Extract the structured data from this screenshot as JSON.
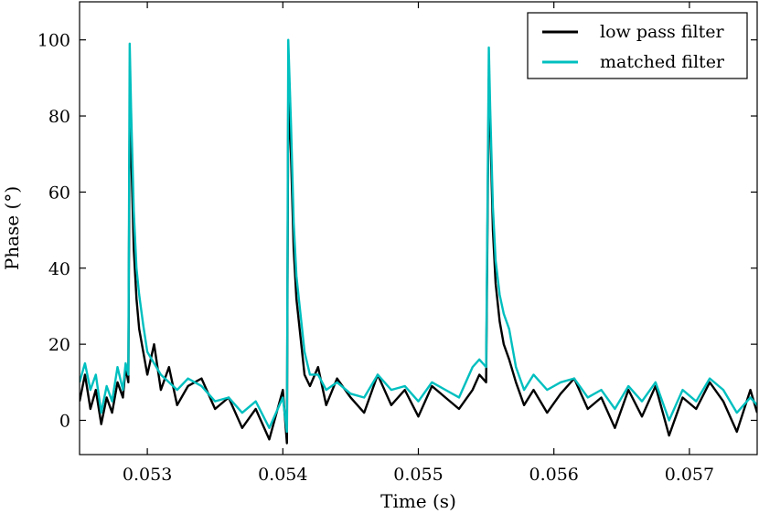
{
  "chart_data": {
    "type": "line",
    "title": "",
    "xlabel": "Time (s)",
    "ylabel": "Phase (°)",
    "xlim": [
      0.0525,
      0.0575
    ],
    "ylim": [
      -9,
      110
    ],
    "xticks": [
      0.053,
      0.054,
      0.055,
      0.056,
      0.057
    ],
    "xtick_labels": [
      "0.053",
      "0.054",
      "0.055",
      "0.056",
      "0.057"
    ],
    "yticks": [
      0,
      20,
      40,
      60,
      80,
      100
    ],
    "ytick_labels": [
      "0",
      "20",
      "40",
      "60",
      "80",
      "100"
    ],
    "grid": false,
    "legend": {
      "position": "top-right",
      "entries": [
        "low pass filter",
        "matched filter"
      ]
    },
    "series": [
      {
        "name": "low pass filter",
        "color": "#000000",
        "x": [
          0.0525,
          0.05254,
          0.05258,
          0.05262,
          0.05266,
          0.0527,
          0.05274,
          0.05278,
          0.05282,
          0.05284,
          0.05286,
          0.05287,
          0.05288,
          0.0529,
          0.05292,
          0.05294,
          0.05297,
          0.053,
          0.05305,
          0.0531,
          0.05316,
          0.05322,
          0.0533,
          0.0534,
          0.0535,
          0.0536,
          0.0537,
          0.0538,
          0.0539,
          0.054,
          0.05403,
          0.05404,
          0.05406,
          0.05408,
          0.0541,
          0.05413,
          0.05416,
          0.0542,
          0.05426,
          0.05432,
          0.0544,
          0.0545,
          0.0546,
          0.0547,
          0.0548,
          0.0549,
          0.055,
          0.0551,
          0.0552,
          0.0553,
          0.0554,
          0.05545,
          0.0555,
          0.05552,
          0.05553,
          0.05555,
          0.05557,
          0.0556,
          0.05563,
          0.05567,
          0.05572,
          0.05578,
          0.05585,
          0.05595,
          0.05605,
          0.05615,
          0.05625,
          0.05635,
          0.05645,
          0.05655,
          0.05665,
          0.05675,
          0.05685,
          0.05695,
          0.05705,
          0.05715,
          0.05725,
          0.05735,
          0.05745,
          0.0575
        ],
        "y": [
          5,
          12,
          3,
          8,
          -1,
          6,
          2,
          10,
          6,
          14,
          10,
          82,
          72,
          45,
          32,
          24,
          18,
          12,
          20,
          8,
          14,
          4,
          9,
          11,
          3,
          6,
          -2,
          3,
          -5,
          8,
          -6,
          86,
          70,
          45,
          32,
          22,
          12,
          9,
          14,
          4,
          11,
          6,
          2,
          12,
          4,
          8,
          1,
          9,
          6,
          3,
          8,
          12,
          10,
          90,
          78,
          50,
          36,
          26,
          20,
          16,
          10,
          4,
          8,
          2,
          7,
          11,
          3,
          6,
          -2,
          8,
          1,
          9,
          -4,
          6,
          3,
          10,
          5,
          -3,
          8,
          2
        ]
      },
      {
        "name": "matched filter",
        "color": "#00bfbf",
        "x": [
          0.0525,
          0.05254,
          0.05258,
          0.05262,
          0.05266,
          0.0527,
          0.05274,
          0.05278,
          0.05282,
          0.05284,
          0.05286,
          0.05287,
          0.05288,
          0.0529,
          0.05292,
          0.05294,
          0.05297,
          0.053,
          0.05305,
          0.0531,
          0.05316,
          0.05322,
          0.0533,
          0.0534,
          0.0535,
          0.0536,
          0.0537,
          0.0538,
          0.0539,
          0.054,
          0.05403,
          0.05404,
          0.05406,
          0.05408,
          0.0541,
          0.05413,
          0.05416,
          0.0542,
          0.05426,
          0.05432,
          0.0544,
          0.0545,
          0.0546,
          0.0547,
          0.0548,
          0.0549,
          0.055,
          0.0551,
          0.0552,
          0.0553,
          0.0554,
          0.05545,
          0.0555,
          0.05552,
          0.05553,
          0.05555,
          0.05557,
          0.0556,
          0.05563,
          0.05567,
          0.05572,
          0.05578,
          0.05585,
          0.05595,
          0.05605,
          0.05615,
          0.05625,
          0.05635,
          0.05645,
          0.05655,
          0.05665,
          0.05675,
          0.05685,
          0.05695,
          0.05705,
          0.05715,
          0.05725,
          0.05735,
          0.05745,
          0.0575
        ],
        "y": [
          10,
          15,
          8,
          12,
          2,
          9,
          5,
          14,
          8,
          15,
          12,
          99,
          82,
          55,
          40,
          33,
          25,
          18,
          15,
          12,
          10,
          8,
          11,
          9,
          5,
          6,
          2,
          5,
          -2,
          6,
          -3,
          100,
          78,
          52,
          38,
          28,
          18,
          12,
          12,
          8,
          10,
          7,
          6,
          12,
          8,
          9,
          5,
          10,
          8,
          6,
          14,
          16,
          14,
          98,
          82,
          56,
          42,
          33,
          28,
          24,
          14,
          8,
          12,
          8,
          10,
          11,
          6,
          8,
          3,
          9,
          5,
          10,
          0,
          8,
          5,
          11,
          8,
          2,
          6,
          4
        ]
      }
    ]
  }
}
